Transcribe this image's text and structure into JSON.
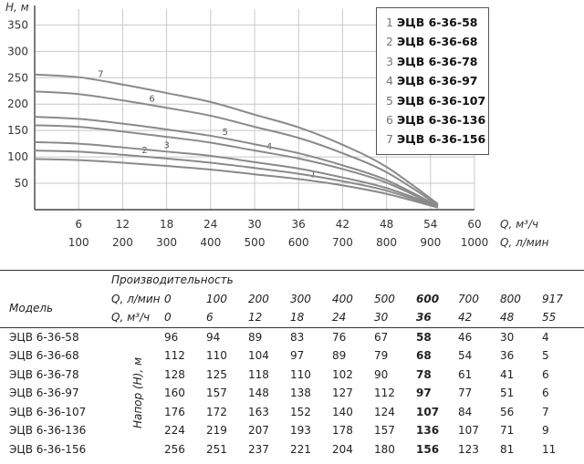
{
  "chart_data": {
    "type": "line",
    "ylabel": "H, м",
    "xlabel_m3": "Q, м³/ч",
    "xlabel_l": "Q, л/мин",
    "yticks": [
      "50",
      "100",
      "150",
      "200",
      "250",
      "300",
      "350"
    ],
    "xticks_m3": [
      "6",
      "12",
      "18",
      "24",
      "30",
      "36",
      "42",
      "48",
      "54",
      "60"
    ],
    "xticks_l": [
      "100",
      "200",
      "300",
      "400",
      "500",
      "600",
      "700",
      "800",
      "900",
      "1000"
    ],
    "x": [
      0,
      6,
      12,
      18,
      24,
      30,
      36,
      42,
      48,
      55
    ],
    "xlim": [
      0,
      60
    ],
    "ylim": [
      0,
      380
    ],
    "grid": true,
    "series": [
      {
        "name": "1",
        "values": [
          96,
          94,
          89,
          83,
          76,
          67,
          58,
          46,
          30,
          4
        ]
      },
      {
        "name": "2",
        "values": [
          112,
          110,
          104,
          97,
          89,
          79,
          68,
          54,
          36,
          5
        ]
      },
      {
        "name": "3",
        "values": [
          128,
          125,
          118,
          110,
          102,
          90,
          78,
          61,
          41,
          6
        ]
      },
      {
        "name": "4",
        "values": [
          160,
          157,
          148,
          138,
          127,
          112,
          97,
          77,
          51,
          6
        ]
      },
      {
        "name": "5",
        "values": [
          176,
          172,
          163,
          152,
          140,
          124,
          107,
          84,
          56,
          7
        ]
      },
      {
        "name": "6",
        "values": [
          224,
          219,
          207,
          193,
          178,
          157,
          136,
          107,
          71,
          9
        ]
      },
      {
        "name": "7",
        "values": [
          256,
          251,
          237,
          221,
          204,
          180,
          156,
          123,
          81,
          11
        ]
      }
    ],
    "line_color": "#8a8a8a",
    "grid_color": "#c8c8c8"
  },
  "legend": [
    {
      "num": "1",
      "name": "ЭЦВ 6-36-58"
    },
    {
      "num": "2",
      "name": "ЭЦВ 6-36-68"
    },
    {
      "num": "3",
      "name": "ЭЦВ 6-36-78"
    },
    {
      "num": "4",
      "name": "ЭЦВ 6-36-97"
    },
    {
      "num": "5",
      "name": "ЭЦВ 6-36-107"
    },
    {
      "num": "6",
      "name": "ЭЦВ 6-36-136"
    },
    {
      "num": "7",
      "name": "ЭЦВ 6-36-156"
    }
  ],
  "table": {
    "header_productivity": "Производительность",
    "header_model": "Модель",
    "row_l_label": "Q, л/мин",
    "row_l_values": [
      "0",
      "100",
      "200",
      "300",
      "400",
      "500",
      "600",
      "700",
      "800",
      "917"
    ],
    "row_m3_label": "Q, м³/ч",
    "row_m3_values": [
      "0",
      "6",
      "12",
      "18",
      "24",
      "30",
      "36",
      "42",
      "48",
      "55"
    ],
    "head_label": "Напор (Н), м",
    "rows": [
      {
        "model": "ЭЦВ 6-36-58",
        "values": [
          "96",
          "94",
          "89",
          "83",
          "76",
          "67",
          "58",
          "46",
          "30",
          "4"
        ]
      },
      {
        "model": "ЭЦВ 6-36-68",
        "values": [
          "112",
          "110",
          "104",
          "97",
          "89",
          "79",
          "68",
          "54",
          "36",
          "5"
        ]
      },
      {
        "model": "ЭЦВ 6-36-78",
        "values": [
          "128",
          "125",
          "118",
          "110",
          "102",
          "90",
          "78",
          "61",
          "41",
          "6"
        ]
      },
      {
        "model": "ЭЦВ 6-36-97",
        "values": [
          "160",
          "157",
          "148",
          "138",
          "127",
          "112",
          "97",
          "77",
          "51",
          "6"
        ]
      },
      {
        "model": "ЭЦВ 6-36-107",
        "values": [
          "176",
          "172",
          "163",
          "152",
          "140",
          "124",
          "107",
          "84",
          "56",
          "7"
        ]
      },
      {
        "model": "ЭЦВ 6-36-136",
        "values": [
          "224",
          "219",
          "207",
          "193",
          "178",
          "157",
          "136",
          "107",
          "71",
          "9"
        ]
      },
      {
        "model": "ЭЦВ 6-36-156",
        "values": [
          "256",
          "251",
          "237",
          "221",
          "204",
          "180",
          "156",
          "123",
          "81",
          "11"
        ]
      }
    ],
    "bold_column_index": 6
  }
}
